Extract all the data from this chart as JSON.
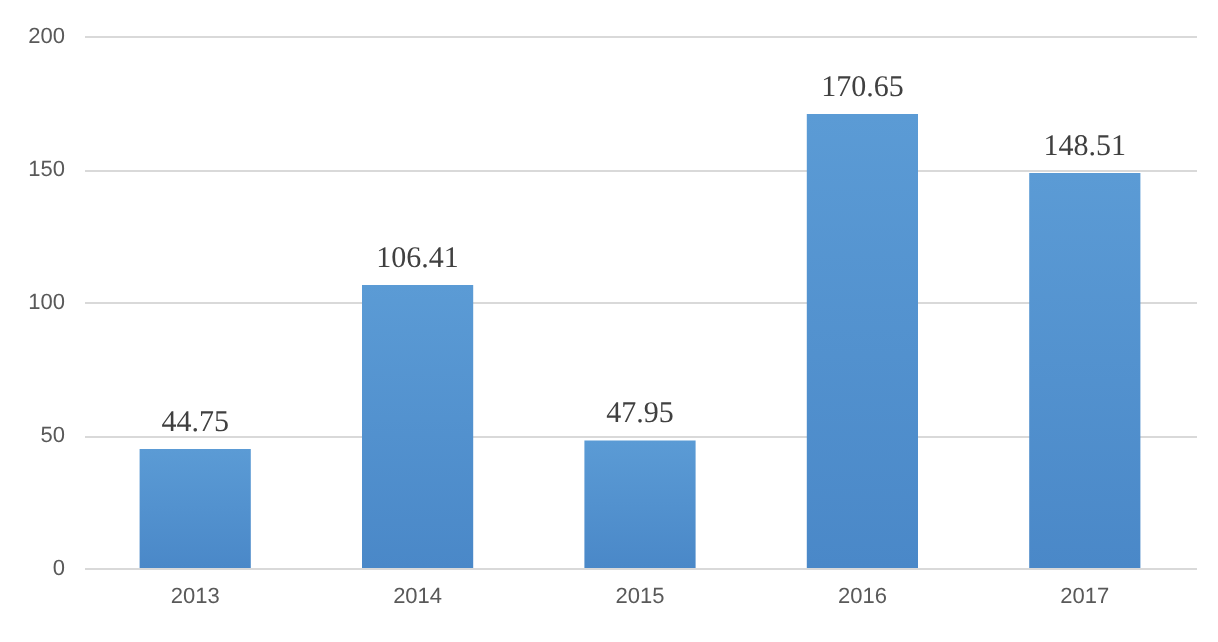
{
  "chart_data": {
    "type": "bar",
    "categories": [
      "2013",
      "2014",
      "2015",
      "2016",
      "2017"
    ],
    "values": [
      44.75,
      106.41,
      47.95,
      170.65,
      148.51
    ],
    "color": "#5b9bd5",
    "ylim": [
      0,
      200
    ],
    "yticks": [
      0,
      50,
      100,
      150,
      200
    ],
    "grid": "y",
    "data_labels": true
  }
}
